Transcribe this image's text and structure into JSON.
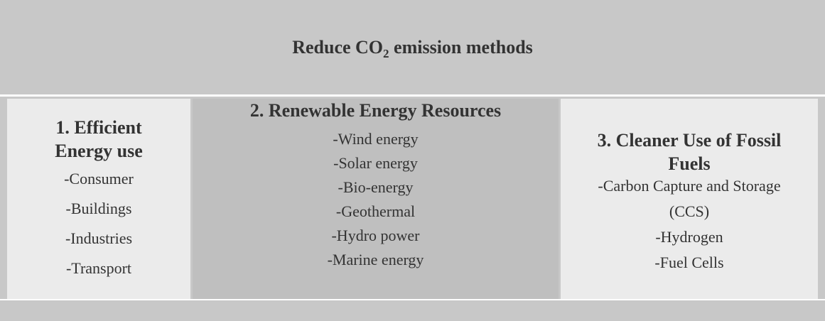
{
  "title_parts": [
    "Reduce CO",
    "2",
    " emission methods"
  ],
  "columns": [
    {
      "heading": [
        "1. Efficient",
        "Energy use"
      ],
      "items": [
        "-Consumer",
        "-Buildings",
        "-Industries",
        "-Transport"
      ]
    },
    {
      "heading": [
        "2. Renewable Energy Resources"
      ],
      "items": [
        "-Wind energy",
        "-Solar energy",
        "-Bio-energy",
        "-Geothermal",
        "-Hydro power",
        "-Marine energy"
      ]
    },
    {
      "heading": [
        "3. Cleaner Use of Fossil",
        "Fuels"
      ],
      "items": [
        "-Carbon Capture and Storage",
        "(CCS)",
        "-Hydrogen",
        "-Fuel Cells"
      ]
    }
  ]
}
